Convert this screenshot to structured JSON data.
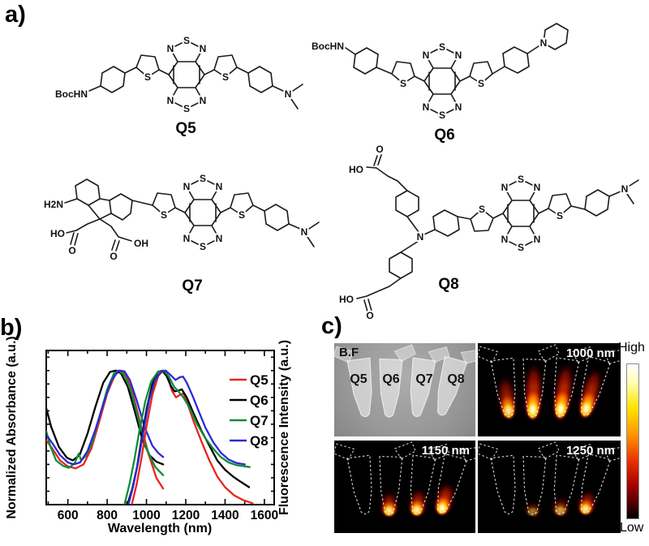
{
  "panel_labels": {
    "a": "a)",
    "b": "b)",
    "c": "c)"
  },
  "atoms": {
    "S": "S",
    "N": "N",
    "BocHN": "BocHN",
    "H2N": "H2N",
    "HO": "HO",
    "OH": "OH",
    "O": "O"
  },
  "molecules": {
    "q5": {
      "name": "Q5"
    },
    "q6": {
      "name": "Q6"
    },
    "q7": {
      "name": "Q7"
    },
    "q8": {
      "name": "Q8"
    }
  },
  "chart_data": {
    "type": "line",
    "xlabel": "Wavelength (nm)",
    "ylabel_left": "Normalized Absorbance (a.u.)",
    "ylabel_right": "Fluorescence Intensity (a.u.)",
    "xlim": [
      490,
      1650
    ],
    "ylim": [
      0,
      1.15
    ],
    "xticks": [
      600,
      800,
      1000,
      1200,
      1400,
      1600
    ],
    "grid": false,
    "legend_position": "upper right",
    "legend": [
      {
        "label": "Q5",
        "color": "#e8251d"
      },
      {
        "label": "Q6",
        "color": "#000000"
      },
      {
        "label": "Q7",
        "color": "#0e8c3a"
      },
      {
        "label": "Q8",
        "color": "#2b2bd5"
      }
    ],
    "series": [
      {
        "name": "Q5",
        "role": "absorbance",
        "color": "#e8251d",
        "points": [
          [
            490,
            0.48
          ],
          [
            520,
            0.42
          ],
          [
            560,
            0.33
          ],
          [
            600,
            0.285
          ],
          [
            640,
            0.27
          ],
          [
            680,
            0.3
          ],
          [
            720,
            0.42
          ],
          [
            760,
            0.62
          ],
          [
            800,
            0.83
          ],
          [
            840,
            0.97
          ],
          [
            870,
            1.0
          ],
          [
            895,
            0.97
          ],
          [
            930,
            0.83
          ],
          [
            970,
            0.6
          ],
          [
            1010,
            0.38
          ],
          [
            1050,
            0.2
          ],
          [
            1085,
            0.12
          ]
        ]
      },
      {
        "name": "Q6",
        "role": "absorbance",
        "color": "#000000",
        "points": [
          [
            490,
            0.72
          ],
          [
            515,
            0.58
          ],
          [
            555,
            0.43
          ],
          [
            595,
            0.35
          ],
          [
            625,
            0.33
          ],
          [
            660,
            0.37
          ],
          [
            700,
            0.53
          ],
          [
            740,
            0.73
          ],
          [
            780,
            0.91
          ],
          [
            815,
            0.99
          ],
          [
            845,
            1.0
          ],
          [
            870,
            0.98
          ],
          [
            905,
            0.88
          ],
          [
            940,
            0.7
          ],
          [
            980,
            0.48
          ],
          [
            1015,
            0.37
          ],
          [
            1050,
            0.32
          ],
          [
            1085,
            0.3
          ]
        ]
      },
      {
        "name": "Q7",
        "role": "absorbance",
        "color": "#0e8c3a",
        "points": [
          [
            490,
            0.55
          ],
          [
            510,
            0.44
          ],
          [
            540,
            0.33
          ],
          [
            575,
            0.29
          ],
          [
            605,
            0.275
          ],
          [
            635,
            0.31
          ],
          [
            655,
            0.38
          ],
          [
            668,
            0.33
          ],
          [
            695,
            0.37
          ],
          [
            725,
            0.47
          ],
          [
            762,
            0.66
          ],
          [
            800,
            0.86
          ],
          [
            835,
            0.98
          ],
          [
            862,
            1.0
          ],
          [
            892,
            0.955
          ],
          [
            925,
            0.83
          ],
          [
            962,
            0.62
          ],
          [
            1000,
            0.42
          ],
          [
            1045,
            0.28
          ],
          [
            1085,
            0.22
          ]
        ]
      },
      {
        "name": "Q8",
        "role": "absorbance",
        "color": "#2b2bd5",
        "points": [
          [
            490,
            0.52
          ],
          [
            520,
            0.46
          ],
          [
            560,
            0.37
          ],
          [
            600,
            0.315
          ],
          [
            630,
            0.3
          ],
          [
            662,
            0.315
          ],
          [
            700,
            0.4
          ],
          [
            740,
            0.56
          ],
          [
            780,
            0.75
          ],
          [
            820,
            0.92
          ],
          [
            858,
            1.0
          ],
          [
            888,
            0.995
          ],
          [
            915,
            0.93
          ],
          [
            950,
            0.78
          ],
          [
            990,
            0.58
          ],
          [
            1030,
            0.44
          ],
          [
            1060,
            0.385
          ],
          [
            1085,
            0.355
          ]
        ]
      },
      {
        "name": "Q5",
        "role": "emission",
        "color": "#e8251d",
        "points": [
          [
            925,
            0.0
          ],
          [
            950,
            0.15
          ],
          [
            975,
            0.35
          ],
          [
            1000,
            0.58
          ],
          [
            1030,
            0.82
          ],
          [
            1060,
            0.96
          ],
          [
            1085,
            1.0
          ],
          [
            1105,
            0.97
          ],
          [
            1130,
            0.85
          ],
          [
            1150,
            0.8
          ],
          [
            1172,
            0.82
          ],
          [
            1188,
            0.83
          ],
          [
            1205,
            0.77
          ],
          [
            1240,
            0.62
          ],
          [
            1280,
            0.47
          ],
          [
            1320,
            0.33
          ],
          [
            1360,
            0.21
          ],
          [
            1400,
            0.13
          ],
          [
            1445,
            0.07
          ],
          [
            1490,
            0.035
          ],
          [
            1540,
            0.01
          ]
        ]
      },
      {
        "name": "Q6",
        "role": "emission",
        "color": "#000000",
        "points": [
          [
            903,
            0.0
          ],
          [
            928,
            0.12
          ],
          [
            952,
            0.28
          ],
          [
            976,
            0.5
          ],
          [
            1002,
            0.72
          ],
          [
            1030,
            0.9
          ],
          [
            1058,
            0.99
          ],
          [
            1080,
            1.0
          ],
          [
            1102,
            0.96
          ],
          [
            1126,
            0.88
          ],
          [
            1143,
            0.845
          ],
          [
            1162,
            0.85
          ],
          [
            1180,
            0.86
          ],
          [
            1205,
            0.8
          ],
          [
            1240,
            0.68
          ],
          [
            1280,
            0.55
          ],
          [
            1320,
            0.44
          ],
          [
            1360,
            0.33
          ],
          [
            1400,
            0.26
          ],
          [
            1440,
            0.21
          ],
          [
            1480,
            0.17
          ],
          [
            1522,
            0.13
          ]
        ]
      },
      {
        "name": "Q7",
        "role": "emission",
        "color": "#0e8c3a",
        "points": [
          [
            888,
            0.0
          ],
          [
            913,
            0.15
          ],
          [
            938,
            0.33
          ],
          [
            964,
            0.55
          ],
          [
            994,
            0.77
          ],
          [
            1024,
            0.92
          ],
          [
            1058,
            0.99
          ],
          [
            1088,
            1.0
          ],
          [
            1114,
            0.955
          ],
          [
            1140,
            0.88
          ],
          [
            1165,
            0.84
          ],
          [
            1190,
            0.795
          ],
          [
            1220,
            0.72
          ],
          [
            1258,
            0.6
          ],
          [
            1298,
            0.5
          ],
          [
            1338,
            0.42
          ],
          [
            1378,
            0.355
          ],
          [
            1418,
            0.315
          ],
          [
            1458,
            0.295
          ],
          [
            1525,
            0.28
          ]
        ]
      },
      {
        "name": "Q8",
        "role": "emission",
        "color": "#2b2bd5",
        "points": [
          [
            908,
            0.0
          ],
          [
            933,
            0.14
          ],
          [
            958,
            0.32
          ],
          [
            984,
            0.54
          ],
          [
            1014,
            0.78
          ],
          [
            1044,
            0.93
          ],
          [
            1072,
            0.99
          ],
          [
            1098,
            1.0
          ],
          [
            1124,
            0.965
          ],
          [
            1148,
            0.93
          ],
          [
            1170,
            0.95
          ],
          [
            1186,
            0.955
          ],
          [
            1205,
            0.91
          ],
          [
            1235,
            0.81
          ],
          [
            1265,
            0.7
          ],
          [
            1300,
            0.575
          ],
          [
            1340,
            0.465
          ],
          [
            1380,
            0.385
          ],
          [
            1420,
            0.335
          ],
          [
            1460,
            0.31
          ],
          [
            1500,
            0.3
          ]
        ]
      }
    ]
  },
  "panel_c": {
    "colorbar": {
      "high": "High",
      "low": "Low"
    },
    "images": [
      {
        "label": "B.F",
        "type": "brightfield",
        "tube_labels": [
          "Q5",
          "Q6",
          "Q7",
          "Q8"
        ],
        "glow_levels": [
          0,
          0,
          0,
          0
        ],
        "glow_heights": [
          0,
          0,
          0,
          0
        ]
      },
      {
        "label": "1000 nm",
        "type": "nir",
        "glow_levels": [
          0.8,
          1,
          1,
          0.95
        ],
        "glow_heights": [
          0.75,
          1,
          1,
          0.9
        ]
      },
      {
        "label": "1150 nm",
        "type": "nir",
        "glow_levels": [
          0,
          0.8,
          0.85,
          1
        ],
        "glow_heights": [
          0,
          0.4,
          0.45,
          0.55
        ]
      },
      {
        "label": "1250 nm",
        "type": "nir",
        "glow_levels": [
          0,
          0.3,
          0.45,
          0.8
        ],
        "glow_heights": [
          0,
          0.22,
          0.3,
          0.4
        ]
      }
    ]
  }
}
